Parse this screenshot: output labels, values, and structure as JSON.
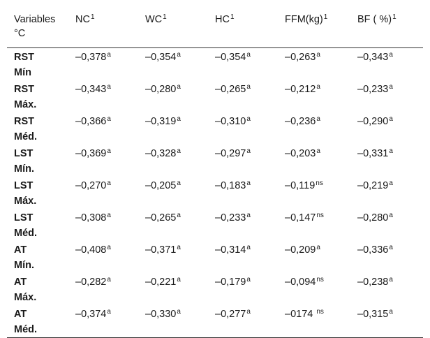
{
  "table": {
    "header": {
      "variables_line1": "Variables",
      "variables_line2": "°C",
      "columns": [
        {
          "label": "NC",
          "sup": "1"
        },
        {
          "label": "WC",
          "sup": "1"
        },
        {
          "label": "HC",
          "sup": "1"
        },
        {
          "label": "FFM(kg)",
          "sup": "1"
        },
        {
          "label": "BF ( %)",
          "sup": "1"
        }
      ]
    },
    "rows": [
      {
        "line1": "RST",
        "line2": "Mín",
        "cells": [
          {
            "v": "–0,378",
            "s": "a"
          },
          {
            "v": "–0,354",
            "s": "a"
          },
          {
            "v": "–0,354",
            "s": "a"
          },
          {
            "v": "–0,263",
            "s": "a"
          },
          {
            "v": "–0,343",
            "s": "a"
          }
        ]
      },
      {
        "line1": "RST",
        "line2": "Máx.",
        "cells": [
          {
            "v": "–0,343",
            "s": "a"
          },
          {
            "v": "–0,280",
            "s": "a"
          },
          {
            "v": "–0,265",
            "s": "a"
          },
          {
            "v": "–0,212",
            "s": "a"
          },
          {
            "v": "–0,233",
            "s": "a"
          }
        ]
      },
      {
        "line1": "RST",
        "line2": "Méd.",
        "cells": [
          {
            "v": "–0,366",
            "s": "a"
          },
          {
            "v": "–0,319",
            "s": "a"
          },
          {
            "v": "–0,310",
            "s": "a"
          },
          {
            "v": "–0,236",
            "s": "a"
          },
          {
            "v": "–0,290",
            "s": "a"
          }
        ]
      },
      {
        "line1": "LST",
        "line2": "Mín.",
        "cells": [
          {
            "v": "–0,369",
            "s": "a"
          },
          {
            "v": "–0,328",
            "s": "a"
          },
          {
            "v": "–0,297",
            "s": "a"
          },
          {
            "v": "–0,203",
            "s": "a"
          },
          {
            "v": "–0,331",
            "s": "a"
          }
        ]
      },
      {
        "line1": "LST",
        "line2": "Máx.",
        "cells": [
          {
            "v": "–0,270",
            "s": "a"
          },
          {
            "v": "–0,205",
            "s": "a"
          },
          {
            "v": "–0,183",
            "s": "a"
          },
          {
            "v": "–0,119",
            "s": "ns"
          },
          {
            "v": "–0,219",
            "s": "a"
          }
        ]
      },
      {
        "line1": "LST",
        "line2": "Méd.",
        "cells": [
          {
            "v": "–0,308",
            "s": "a"
          },
          {
            "v": "–0,265",
            "s": "a"
          },
          {
            "v": "–0,233",
            "s": "a"
          },
          {
            "v": "–0,147",
            "s": "ns"
          },
          {
            "v": "–0,280",
            "s": "a"
          }
        ]
      },
      {
        "line1": "AT",
        "line2": "Mín.",
        "cells": [
          {
            "v": "–0,408",
            "s": "a"
          },
          {
            "v": "–0,371",
            "s": "a"
          },
          {
            "v": "–0,314",
            "s": "a"
          },
          {
            "v": "–0,209",
            "s": "a"
          },
          {
            "v": "–0,336",
            "s": "a"
          }
        ]
      },
      {
        "line1": "AT",
        "line2": "Máx.",
        "cells": [
          {
            "v": "–0,282",
            "s": "a"
          },
          {
            "v": "–0,221",
            "s": "a"
          },
          {
            "v": "–0,179",
            "s": "a"
          },
          {
            "v": "–0,094",
            "s": "ns"
          },
          {
            "v": "–0,238",
            "s": "a"
          }
        ]
      },
      {
        "line1": "AT",
        "line2": "Méd.",
        "cells": [
          {
            "v": "–0,374",
            "s": "a"
          },
          {
            "v": "–0,330",
            "s": "a"
          },
          {
            "v": "–0,277",
            "s": "a"
          },
          {
            "v": "–0174 ",
            "s": "ns"
          },
          {
            "v": "–0,315",
            "s": "a"
          }
        ]
      }
    ]
  }
}
